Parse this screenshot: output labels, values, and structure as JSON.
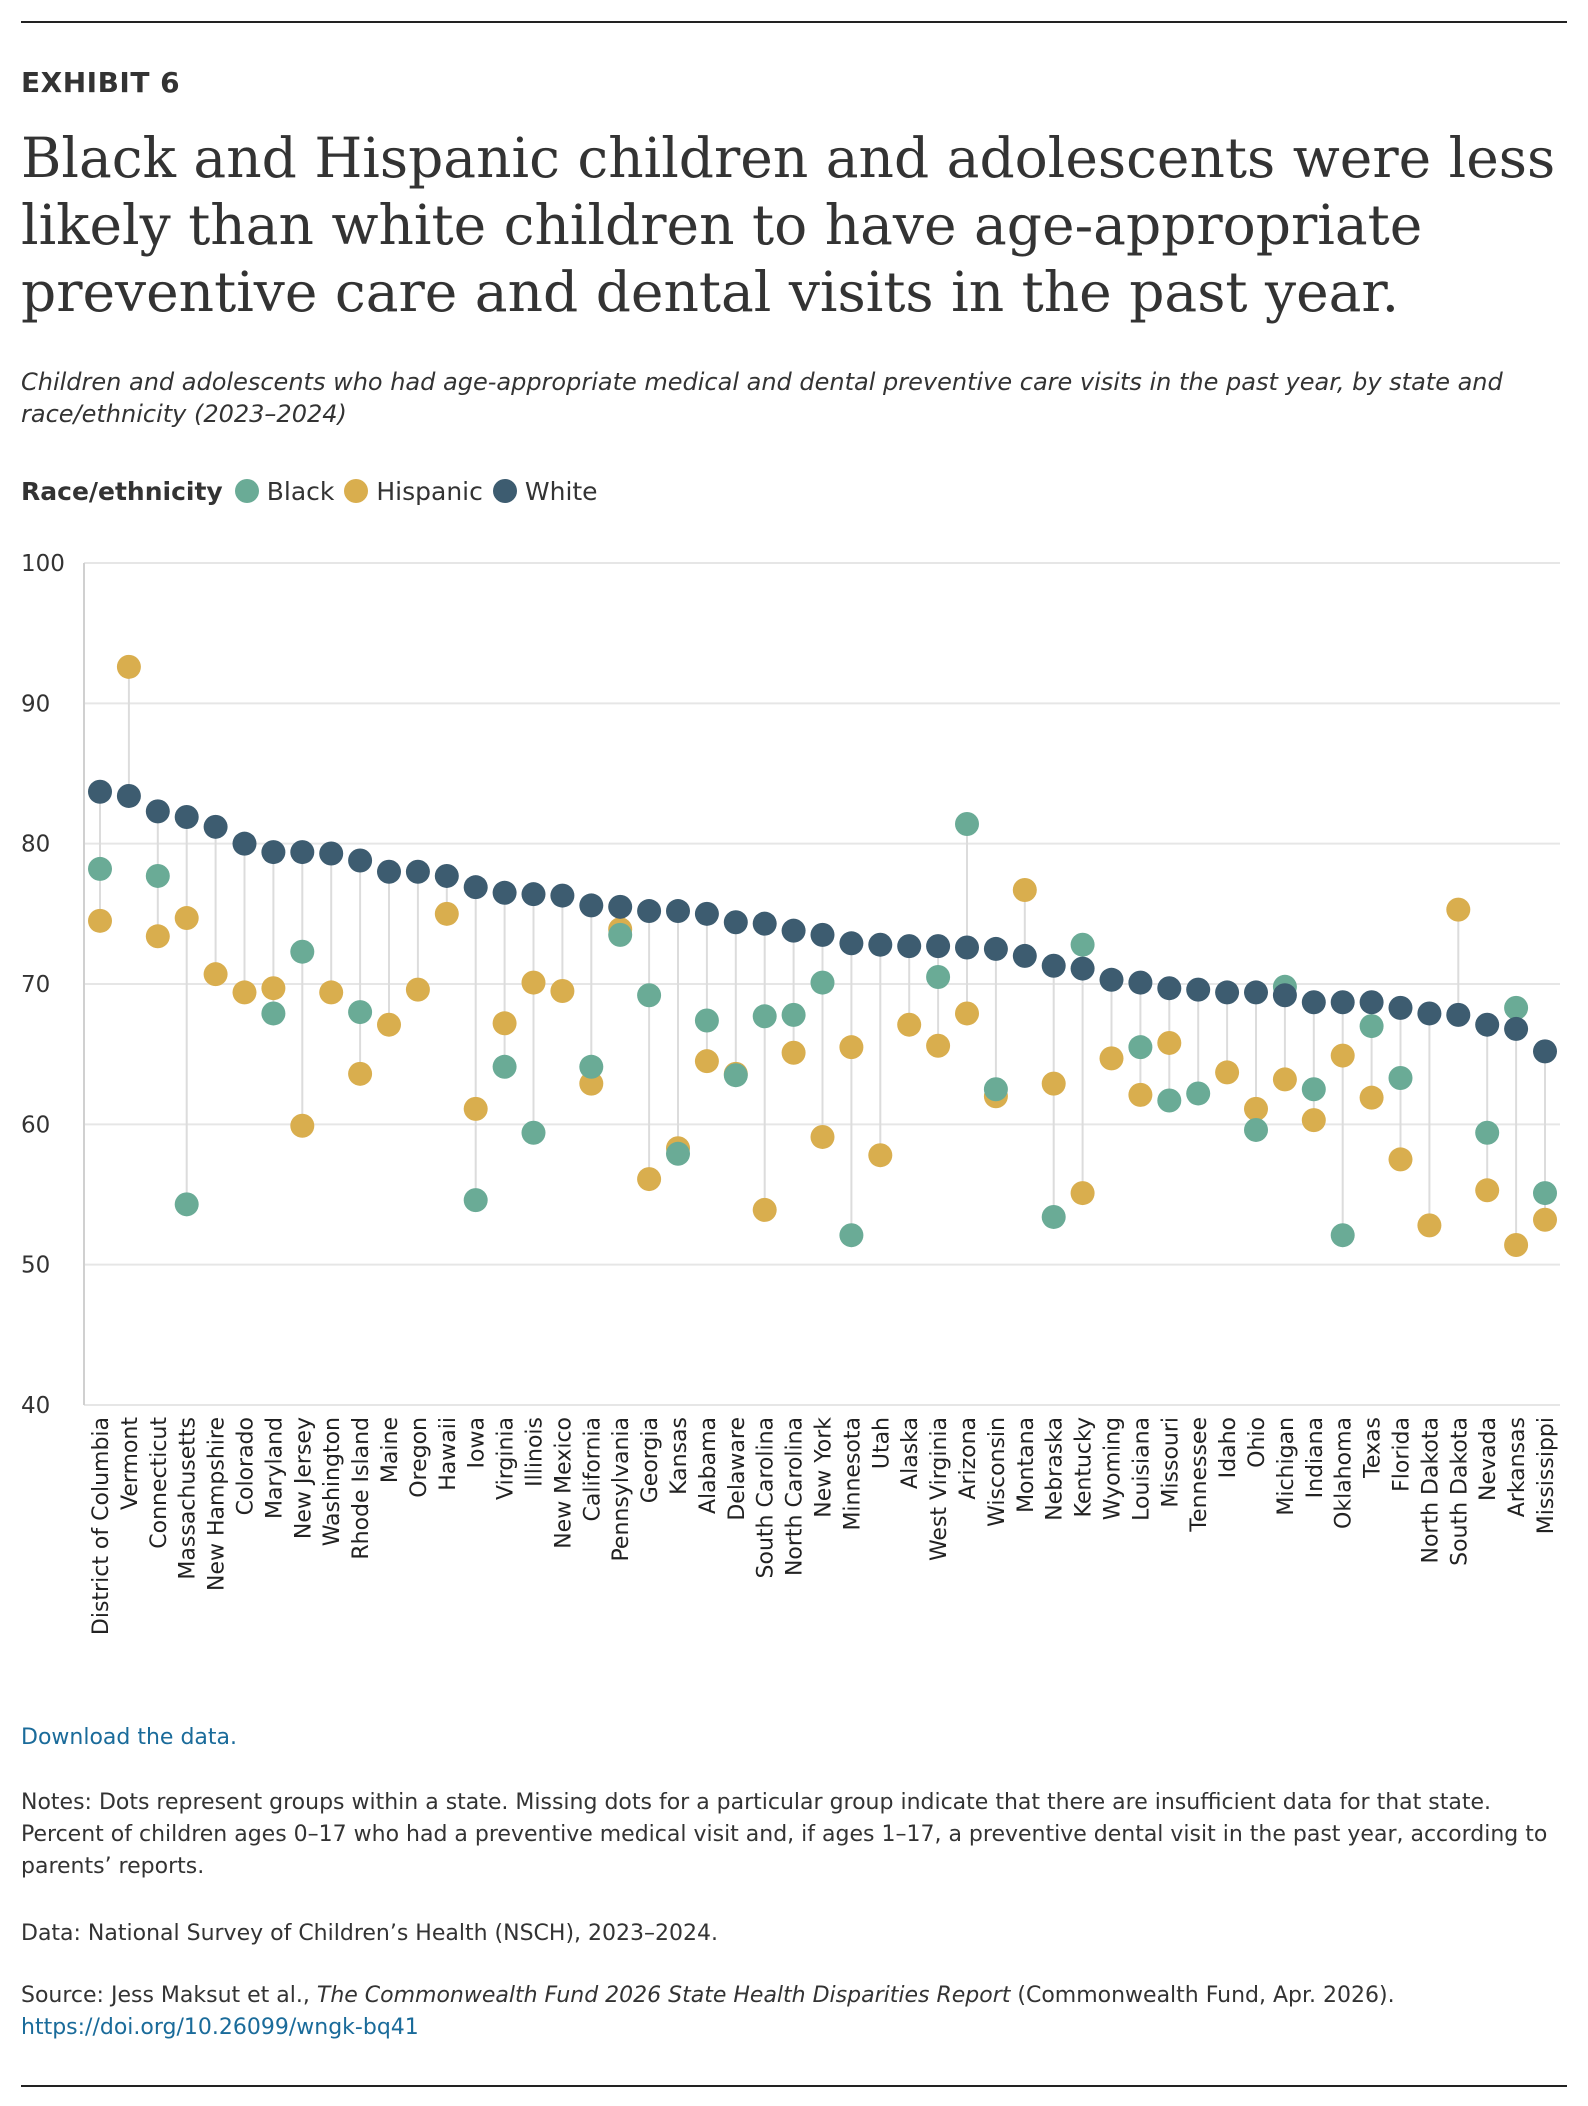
{
  "exhibit_label": "EXHIBIT 6",
  "title": "Black and Hispanic children and adolescents were less likely than white children to have age-appropriate preventive care and dental visits in the past year.",
  "subtitle": "Children and adolescents who had age-appropriate medical and dental preventive care visits in the past year, by state and race/ethnicity (2023–2024)",
  "legend": {
    "title": "Race/ethnicity",
    "items": [
      {
        "label": "Black",
        "color": "#6aab96"
      },
      {
        "label": "Hispanic",
        "color": "#d9ae4e"
      },
      {
        "label": "White",
        "color": "#3d5c70"
      }
    ]
  },
  "download_link": "Download the data.",
  "notes": "Notes: Dots represent groups within a state. Missing dots for a particular group indicate that there are insufficient data for that state. Percent of children ages 0–17 who had a preventive medical visit and, if ages 1–17, a preventive dental visit in the past year, according to parents’ reports.",
  "data_source": "Data: National Survey of Children’s Health (NSCH), 2023–2024.",
  "source": {
    "prefix": "Source: Jess Maksut et al., ",
    "report_title": "The Commonwealth Fund 2026 State Health Disparities Report",
    "suffix": " (Commonwealth Fund, Apr. 2026).",
    "doi": "https://doi.org/10.26099/wngk-bq41"
  },
  "chart_data": {
    "type": "scatter",
    "ylim": [
      40,
      100
    ],
    "yticks": [
      40,
      50,
      60,
      70,
      80,
      90,
      100
    ],
    "grid": true,
    "categories": [
      "District of Columbia",
      "Vermont",
      "Connecticut",
      "Massachusetts",
      "New Hampshire",
      "Colorado",
      "Maryland",
      "New Jersey",
      "Washington",
      "Rhode Island",
      "Maine",
      "Oregon",
      "Hawaii",
      "Iowa",
      "Virginia",
      "Illinois",
      "New Mexico",
      "California",
      "Pennsylvania",
      "Georgia",
      "Kansas",
      "Alabama",
      "Delaware",
      "South Carolina",
      "North Carolina",
      "New York",
      "Minnesota",
      "Utah",
      "Alaska",
      "West Virginia",
      "Arizona",
      "Wisconsin",
      "Montana",
      "Nebraska",
      "Kentucky",
      "Wyoming",
      "Louisiana",
      "Missouri",
      "Tennessee",
      "Idaho",
      "Ohio",
      "Michigan",
      "Indiana",
      "Oklahoma",
      "Texas",
      "Florida",
      "North Dakota",
      "South Dakota",
      "Nevada",
      "Arkansas",
      "Mississippi"
    ],
    "series": [
      {
        "name": "Black",
        "color": "#6aab96",
        "values": [
          78.2,
          null,
          77.7,
          54.3,
          null,
          null,
          67.9,
          72.3,
          null,
          68.0,
          null,
          null,
          null,
          54.6,
          64.1,
          59.4,
          null,
          64.1,
          73.5,
          69.2,
          57.9,
          67.4,
          63.5,
          67.7,
          67.8,
          70.1,
          52.1,
          null,
          null,
          70.5,
          81.4,
          62.5,
          null,
          53.4,
          72.8,
          null,
          65.5,
          61.7,
          62.2,
          null,
          59.6,
          69.8,
          62.5,
          52.1,
          67.0,
          63.3,
          null,
          null,
          59.4,
          68.3,
          55.1
        ]
      },
      {
        "name": "Hispanic",
        "color": "#d9ae4e",
        "values": [
          74.5,
          92.6,
          73.4,
          74.7,
          70.7,
          69.4,
          69.7,
          59.9,
          69.4,
          63.6,
          67.1,
          69.6,
          75.0,
          61.1,
          67.2,
          70.1,
          69.5,
          62.9,
          73.9,
          56.1,
          58.3,
          64.5,
          63.6,
          53.9,
          65.1,
          59.1,
          65.5,
          57.8,
          67.1,
          65.6,
          67.9,
          62.0,
          76.7,
          62.9,
          55.1,
          64.7,
          62.1,
          65.8,
          null,
          63.7,
          61.1,
          63.2,
          60.3,
          64.9,
          61.9,
          57.5,
          52.8,
          75.3,
          55.3,
          51.4,
          53.2
        ]
      },
      {
        "name": "White",
        "color": "#3d5c70",
        "values": [
          83.7,
          83.4,
          82.3,
          81.9,
          81.2,
          80.0,
          79.4,
          79.4,
          79.3,
          78.8,
          78.0,
          78.0,
          77.7,
          76.9,
          76.5,
          76.4,
          76.3,
          75.6,
          75.5,
          75.2,
          75.2,
          75.0,
          74.4,
          74.3,
          73.8,
          73.5,
          72.9,
          72.8,
          72.7,
          72.7,
          72.6,
          72.5,
          72.0,
          71.3,
          71.1,
          70.3,
          70.1,
          69.7,
          69.6,
          69.4,
          69.4,
          69.2,
          68.7,
          68.7,
          68.7,
          68.3,
          67.9,
          67.8,
          67.1,
          66.8,
          65.2
        ]
      }
    ]
  }
}
